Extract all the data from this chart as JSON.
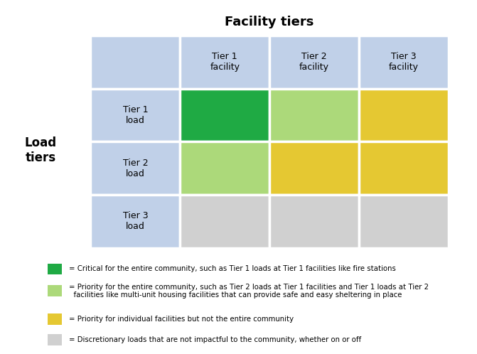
{
  "title": "Facility tiers",
  "col_headers": [
    "Tier 1\nfacility",
    "Tier 2\nfacility",
    "Tier 3\nfacility"
  ],
  "row_headers": [
    "Tier 1\nload",
    "Tier 2\nload",
    "Tier 3\nload"
  ],
  "row_label": "Load\ntiers",
  "cell_colors": [
    [
      "#1faa44",
      "#acd97a",
      "#e5c832"
    ],
    [
      "#acd97a",
      "#e5c832",
      "#e5c832"
    ],
    [
      "#d0d0d0",
      "#d0d0d0",
      "#d0d0d0"
    ]
  ],
  "header_bg": "#c0d0e8",
  "legend": [
    {
      "color": "#1faa44",
      "text": "= Critical for the entire community, such as Tier 1 loads at Tier 1 facilities like fire stations"
    },
    {
      "color": "#acd97a",
      "text": "= Priority for the entire community, such as Tier 2 loads at Tier 1 facilities and Tier 1 loads at Tier 2\n  facilities like multi-unit housing facilities that can provide safe and easy sheltering in place"
    },
    {
      "color": "#e5c832",
      "text": "= Priority for individual facilities but not the entire community"
    },
    {
      "color": "#d0d0d0",
      "text": "= Discretionary loads that are not impactful to the community, whether on or off"
    }
  ],
  "fig_width": 6.71,
  "fig_height": 4.98,
  "dpi": 100
}
